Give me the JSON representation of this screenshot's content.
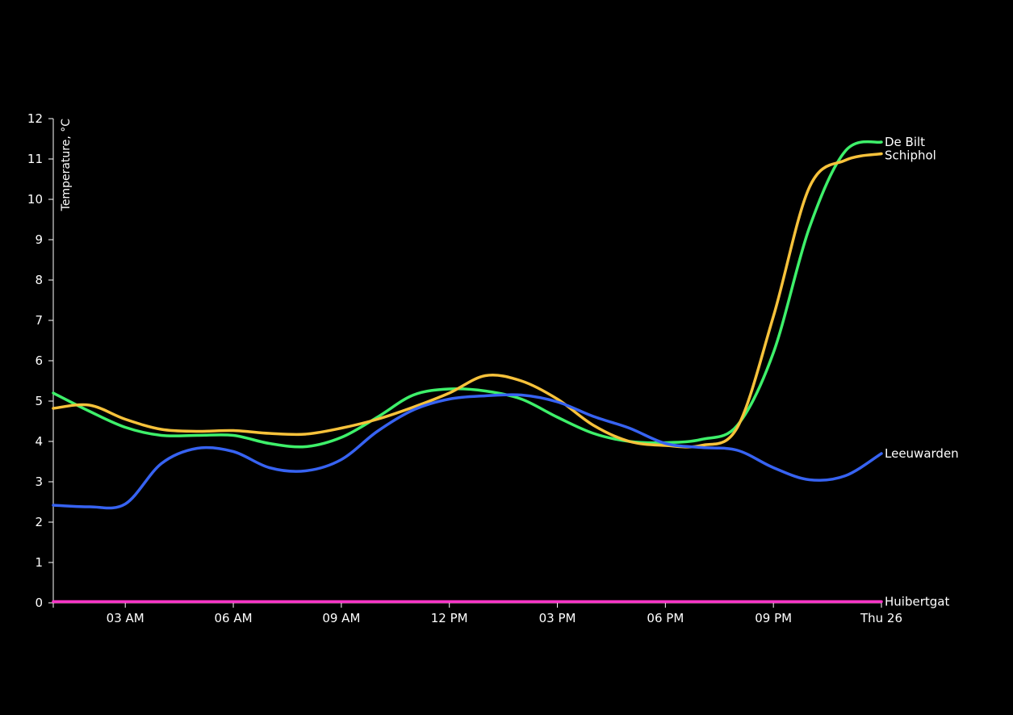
{
  "chart_data": {
    "type": "line",
    "title": "",
    "xlabel": "",
    "ylabel": "Temperature, °C",
    "x_tick_labels": [
      "03 AM",
      "06 AM",
      "09 AM",
      "12 PM",
      "03 PM",
      "06 PM",
      "09 PM",
      "Thu 26"
    ],
    "x_tick_hours": [
      3,
      6,
      9,
      12,
      15,
      18,
      21,
      24
    ],
    "xlim_hours": [
      1,
      24
    ],
    "ylim": [
      0,
      12
    ],
    "y_ticks": [
      0,
      1,
      2,
      3,
      4,
      5,
      6,
      7,
      8,
      9,
      10,
      11,
      12
    ],
    "grid": false,
    "legend": "none",
    "x_hours": [
      1,
      2,
      3,
      4,
      5,
      6,
      7,
      8,
      9,
      10,
      11,
      12,
      13,
      14,
      15,
      16,
      17,
      18,
      19,
      20,
      21,
      22,
      23,
      24
    ],
    "series": [
      {
        "name": "De Bilt",
        "color": "#3ef06a",
        "values": [
          5.2,
          4.75,
          4.35,
          4.15,
          4.15,
          4.15,
          3.95,
          3.87,
          4.1,
          4.6,
          5.15,
          5.3,
          5.25,
          5.05,
          4.6,
          4.2,
          4.0,
          3.97,
          4.05,
          4.4,
          6.2,
          9.3,
          11.2,
          11.42
        ]
      },
      {
        "name": "Schiphol",
        "color": "#f7c23b",
        "values": [
          4.82,
          4.9,
          4.55,
          4.3,
          4.25,
          4.27,
          4.2,
          4.18,
          4.33,
          4.55,
          4.85,
          5.2,
          5.63,
          5.5,
          5.05,
          4.4,
          4.0,
          3.9,
          3.9,
          4.35,
          7.1,
          10.3,
          10.97,
          11.13
        ]
      },
      {
        "name": "Leeuwarden",
        "color": "#3763f2",
        "values": [
          2.42,
          2.38,
          2.45,
          3.45,
          3.83,
          3.75,
          3.35,
          3.27,
          3.55,
          4.25,
          4.78,
          5.05,
          5.13,
          5.15,
          4.98,
          4.62,
          4.33,
          3.95,
          3.85,
          3.78,
          3.35,
          3.05,
          3.15,
          3.7
        ]
      },
      {
        "name": "Huibertgat",
        "color": "#ff34c8",
        "values": [
          0.03,
          0.03,
          0.03,
          0.03,
          0.03,
          0.03,
          0.03,
          0.03,
          0.03,
          0.03,
          0.03,
          0.03,
          0.03,
          0.03,
          0.03,
          0.03,
          0.03,
          0.03,
          0.03,
          0.03,
          0.03,
          0.03,
          0.03,
          0.03
        ]
      }
    ]
  }
}
